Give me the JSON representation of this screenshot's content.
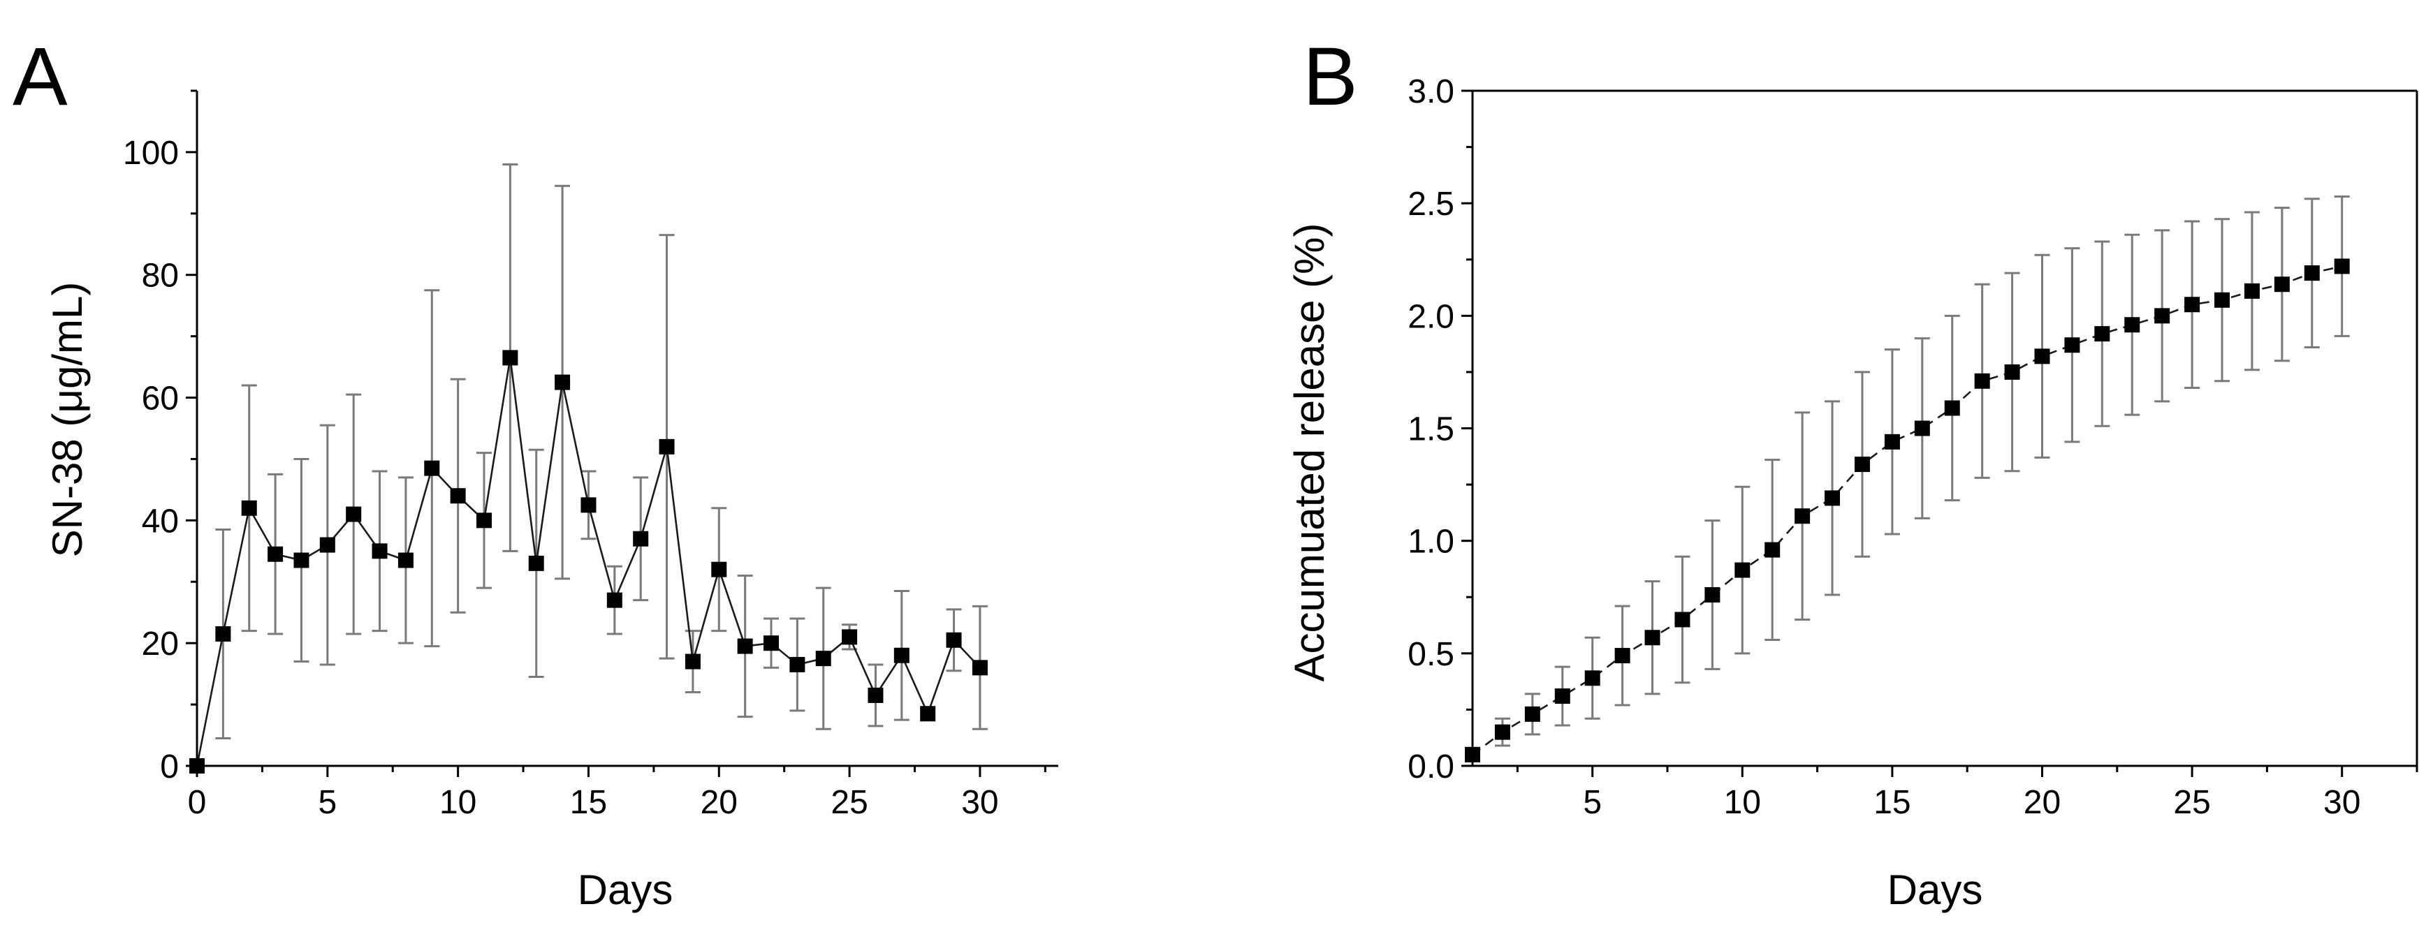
{
  "chart_data": [
    {
      "panel_label": "A",
      "type": "line",
      "title": "",
      "xlabel": "Days",
      "ylabel": "SN-38 (μg/mL)",
      "xlim": [
        0,
        33
      ],
      "ylim": [
        0,
        110
      ],
      "xticks": [
        0,
        5,
        10,
        15,
        20,
        25,
        30
      ],
      "yticks": [
        0,
        20,
        40,
        60,
        80,
        100
      ],
      "xtick_labels": [
        "0",
        "5",
        "10",
        "15",
        "20",
        "25",
        "30"
      ],
      "ytick_labels": [
        "0",
        "20",
        "40",
        "60",
        "80",
        "100"
      ],
      "line_style": "solid",
      "series": [
        {
          "name": "SN-38",
          "x": [
            0,
            1,
            2,
            3,
            4,
            5,
            6,
            7,
            8,
            9,
            10,
            11,
            12,
            13,
            14,
            15,
            16,
            17,
            18,
            19,
            20,
            21,
            22,
            23,
            24,
            25,
            26,
            27,
            28,
            29,
            30
          ],
          "y": [
            0,
            21.5,
            42,
            34.5,
            33.5,
            36,
            41,
            35,
            33.5,
            48.5,
            44,
            40,
            66.5,
            33,
            62.5,
            42.5,
            27,
            37,
            52,
            17,
            32,
            19.5,
            20,
            16.5,
            17.5,
            21,
            11.5,
            18,
            8.5,
            20.5,
            16
          ],
          "error": [
            0,
            17,
            20,
            13,
            16.5,
            19.5,
            19.5,
            13,
            13.5,
            29,
            19,
            11,
            31.5,
            18.5,
            32,
            5.5,
            5.5,
            10,
            34.5,
            5,
            10,
            11.5,
            4,
            7.5,
            11.5,
            2,
            5,
            10.5,
            0,
            5,
            10
          ]
        }
      ]
    },
    {
      "panel_label": "B",
      "type": "line",
      "title": "",
      "xlabel": "Days",
      "ylabel": "Accumuated release (%)",
      "xlim": [
        1,
        32.5
      ],
      "ylim": [
        0,
        3.0
      ],
      "xticks": [
        5,
        10,
        15,
        20,
        25,
        30
      ],
      "yticks": [
        0,
        0.5,
        1.0,
        1.5,
        2.0,
        2.5,
        3.0
      ],
      "xtick_labels": [
        "5",
        "10",
        "15",
        "20",
        "25",
        "30"
      ],
      "ytick_labels": [
        "0.0",
        "0.5",
        "1.0",
        "1.5",
        "2.0",
        "2.5",
        "3.0"
      ],
      "line_style": "dashed",
      "series": [
        {
          "name": "Accumulated release",
          "x": [
            1,
            2,
            3,
            4,
            5,
            6,
            7,
            8,
            9,
            10,
            11,
            12,
            13,
            14,
            15,
            16,
            17,
            18,
            19,
            20,
            21,
            22,
            23,
            24,
            25,
            26,
            27,
            28,
            29,
            30
          ],
          "y": [
            0.05,
            0.15,
            0.23,
            0.31,
            0.39,
            0.49,
            0.57,
            0.65,
            0.76,
            0.87,
            0.96,
            1.11,
            1.19,
            1.34,
            1.44,
            1.5,
            1.59,
            1.71,
            1.75,
            1.82,
            1.87,
            1.92,
            1.96,
            2.0,
            2.05,
            2.07,
            2.11,
            2.14,
            2.19,
            2.22
          ],
          "error": [
            0.03,
            0.06,
            0.09,
            0.13,
            0.18,
            0.22,
            0.25,
            0.28,
            0.33,
            0.37,
            0.4,
            0.46,
            0.43,
            0.41,
            0.41,
            0.4,
            0.41,
            0.43,
            0.44,
            0.45,
            0.43,
            0.41,
            0.4,
            0.38,
            0.37,
            0.36,
            0.35,
            0.34,
            0.33,
            0.31
          ]
        }
      ]
    }
  ]
}
